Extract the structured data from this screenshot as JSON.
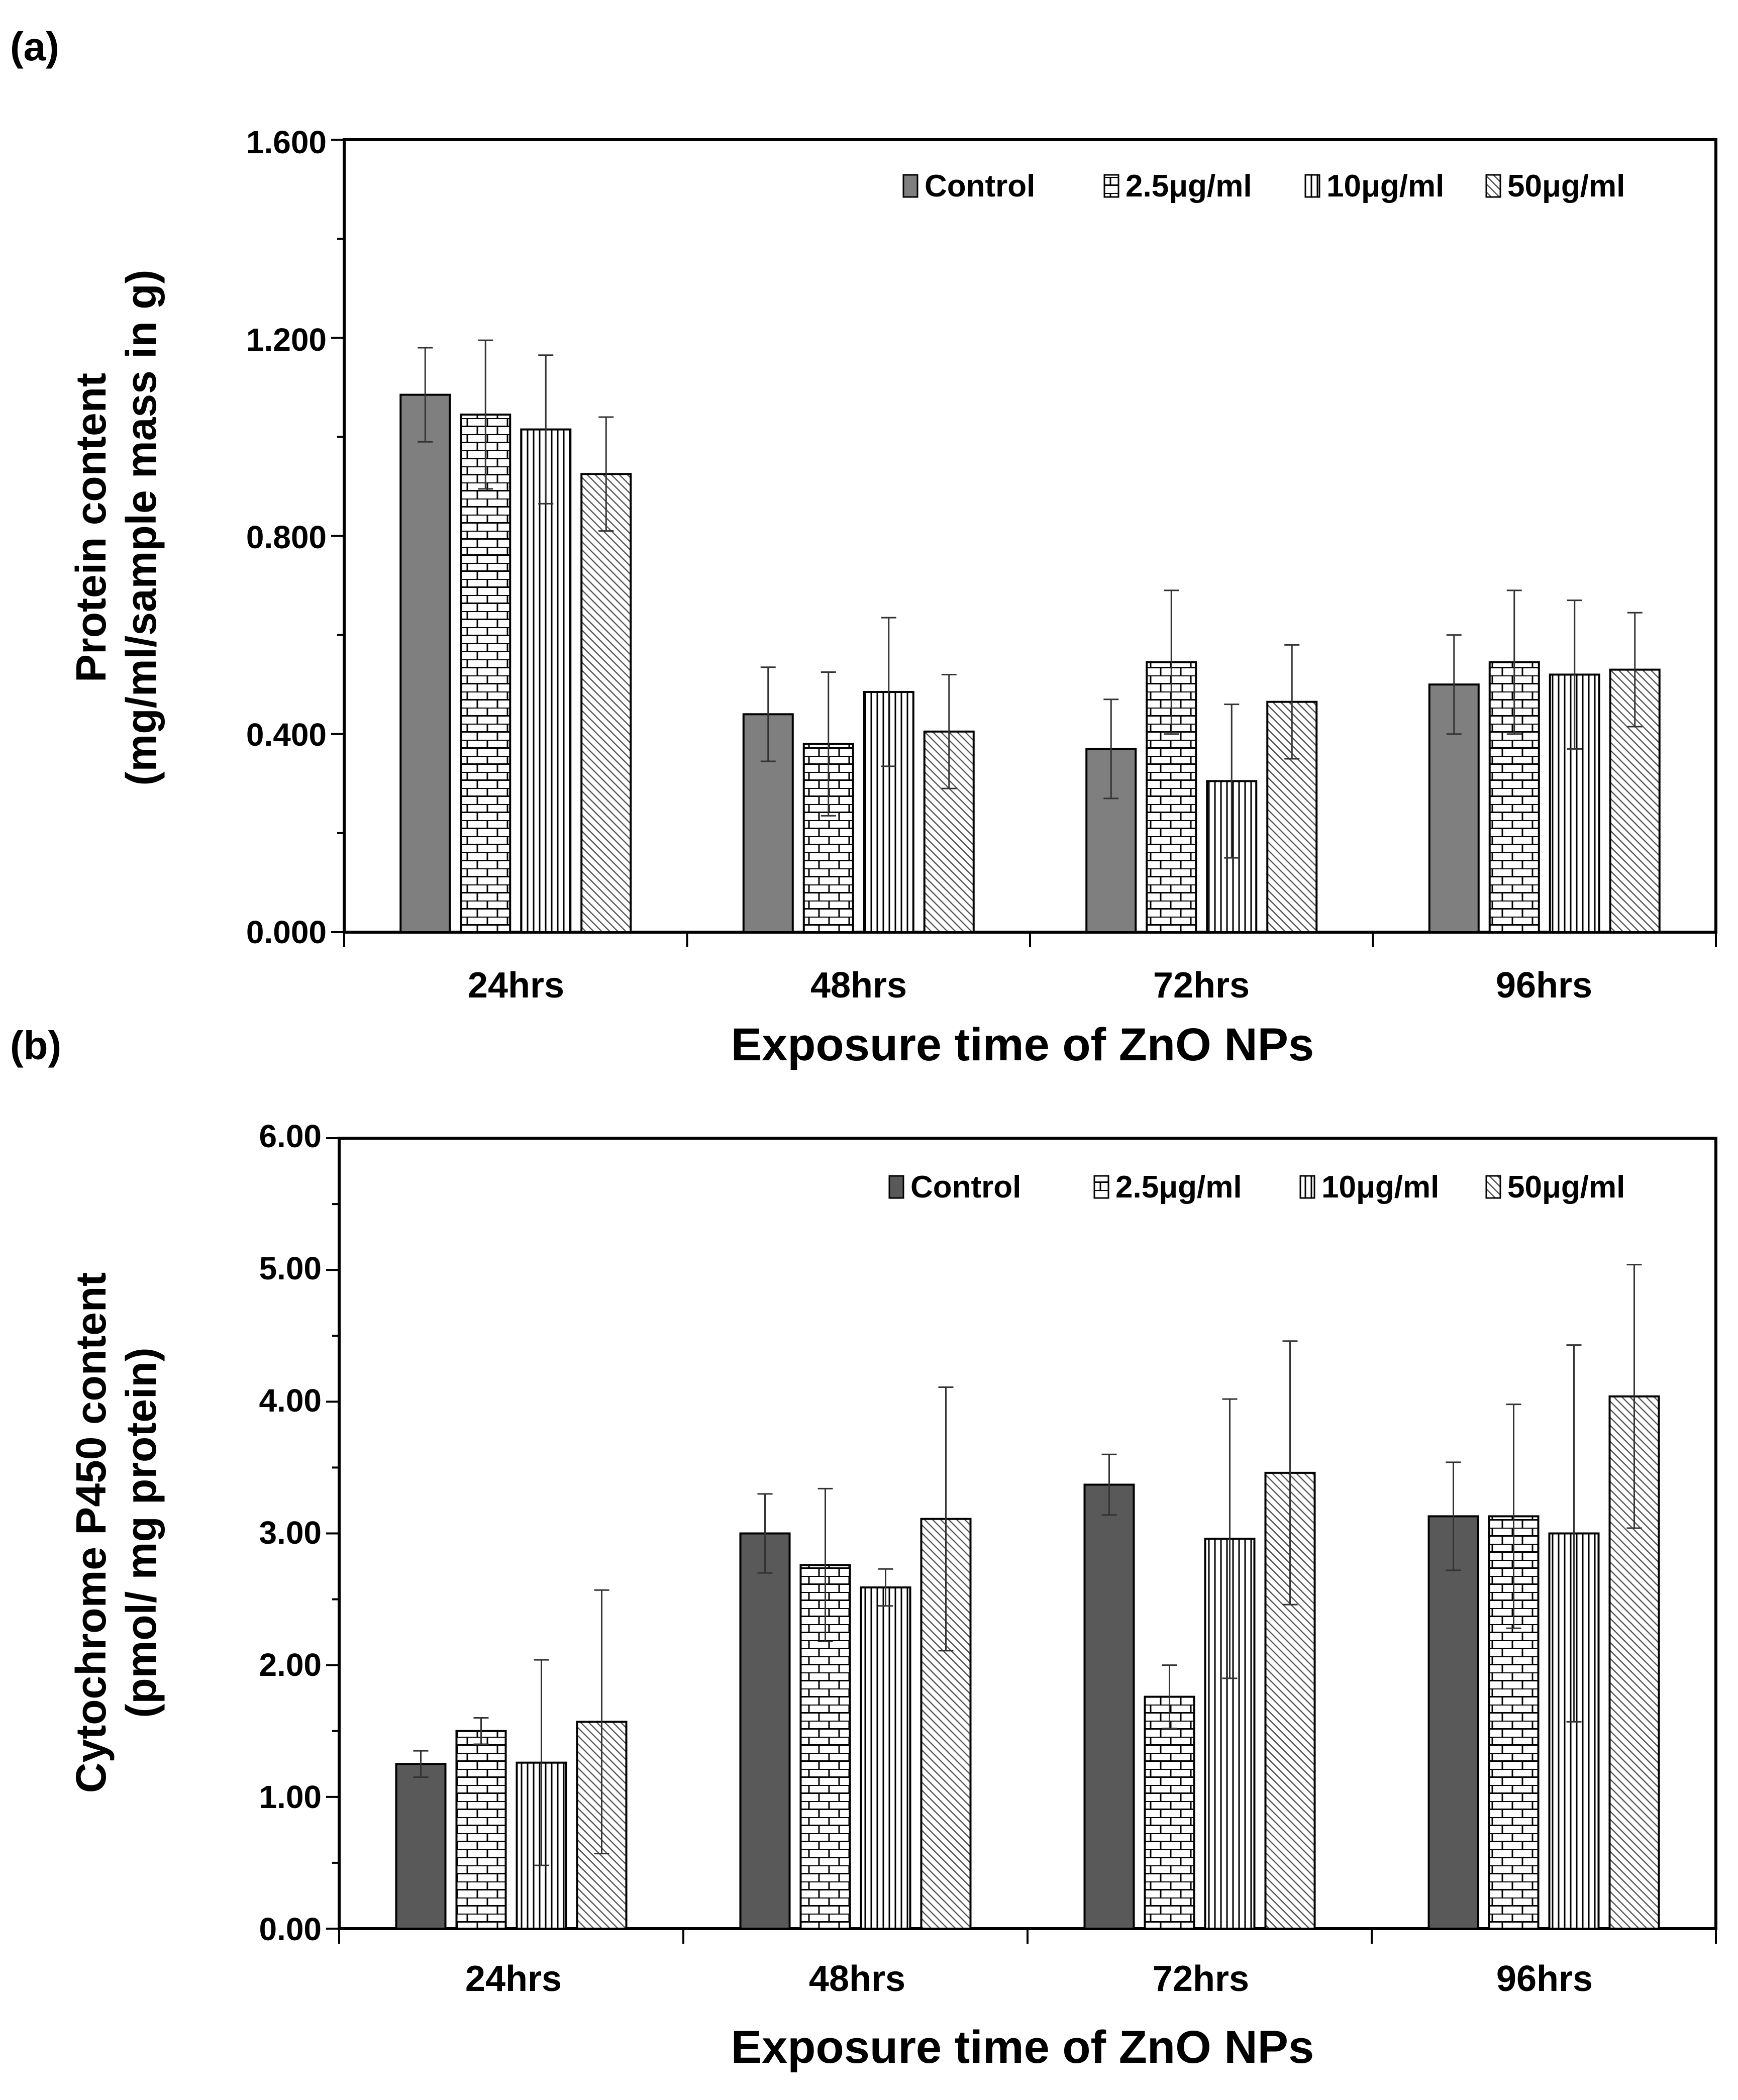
{
  "figure": {
    "panels": [
      {
        "label": "(a)",
        "ylabel_line1": "Protein content",
        "ylabel_line2": "(mg/ml/sample mass in g)",
        "xlabel": "Exposure time of ZnO NPs",
        "y_ticks": [
          "0.000",
          "0.400",
          "0.800",
          "1.200",
          "1.600"
        ]
      },
      {
        "label": "(b)",
        "ylabel_line1": "Cytochrome P450 content",
        "ylabel_line2": "(pmol/ mg protein)",
        "xlabel": "Exposure time of ZnO NPs",
        "y_ticks": [
          "0.00",
          "1.00",
          "2.00",
          "3.00",
          "4.00",
          "5.00",
          "6.00"
        ]
      }
    ]
  },
  "chart_data": [
    {
      "type": "bar",
      "title": "",
      "xlabel": "Exposure time of ZnO NPs",
      "ylabel": "Protein content (mg/ml/sample mass in g)",
      "categories": [
        "24hrs",
        "48hrs",
        "72hrs",
        "96hrs"
      ],
      "ylim": [
        0,
        1.6
      ],
      "y_tick_step": 0.4,
      "y_minor_step": 0.2,
      "legend_position": "top-right",
      "series": [
        {
          "name": "Control",
          "pattern": "solid",
          "color": "#7f7f7f",
          "values": [
            1.085,
            0.44,
            0.37,
            0.5
          ],
          "errors": [
            0.095,
            0.095,
            0.1,
            0.1
          ]
        },
        {
          "name": "2.5μg/ml",
          "pattern": "brick",
          "color": "#ffffff",
          "values": [
            1.045,
            0.38,
            0.545,
            0.545
          ],
          "errors": [
            0.15,
            0.145,
            0.145,
            0.145
          ]
        },
        {
          "name": "10μg/ml",
          "pattern": "vertical",
          "color": "#ffffff",
          "values": [
            1.015,
            0.485,
            0.305,
            0.52
          ],
          "errors": [
            0.15,
            0.15,
            0.155,
            0.15
          ]
        },
        {
          "name": "50μg/ml",
          "pattern": "diagonal",
          "color": "#ffffff",
          "values": [
            0.925,
            0.405,
            0.465,
            0.53
          ],
          "errors": [
            0.115,
            0.115,
            0.115,
            0.115
          ]
        }
      ]
    },
    {
      "type": "bar",
      "title": "",
      "xlabel": "Exposure time of ZnO NPs",
      "ylabel": "Cytochrome P450 content (pmol/ mg protein)",
      "categories": [
        "24hrs",
        "48hrs",
        "72hrs",
        "96hrs"
      ],
      "ylim": [
        0,
        6
      ],
      "y_tick_step": 1,
      "y_minor_step": 0.5,
      "legend_position": "top-right",
      "series": [
        {
          "name": "Control",
          "pattern": "solid",
          "color": "#595959",
          "values": [
            1.25,
            3.0,
            3.37,
            3.13
          ],
          "errors": [
            0.1,
            0.3,
            0.23,
            0.41
          ]
        },
        {
          "name": "2.5μg/ml",
          "pattern": "brick",
          "color": "#ffffff",
          "values": [
            1.5,
            2.76,
            1.76,
            3.13
          ],
          "errors": [
            0.1,
            0.58,
            0.24,
            0.85
          ]
        },
        {
          "name": "10μg/ml",
          "pattern": "vertical",
          "color": "#ffffff",
          "values": [
            1.26,
            2.59,
            2.96,
            3.0
          ],
          "errors": [
            0.78,
            0.14,
            1.06,
            1.43
          ]
        },
        {
          "name": "50μg/ml",
          "pattern": "diagonal",
          "color": "#ffffff",
          "values": [
            1.57,
            3.11,
            3.46,
            4.04
          ],
          "errors": [
            1.0,
            1.0,
            1.0,
            1.0
          ]
        }
      ]
    }
  ]
}
